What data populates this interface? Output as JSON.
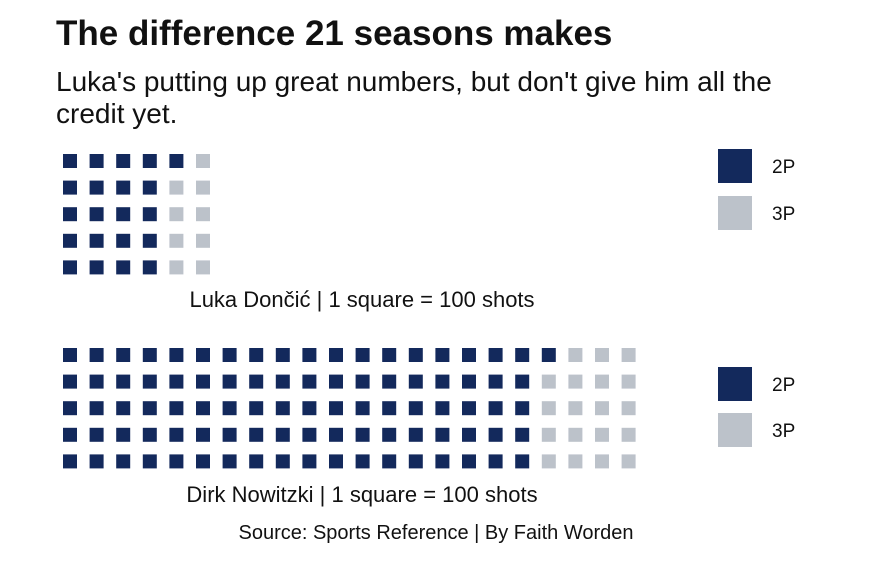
{
  "title": "The difference 21 seasons makes",
  "subtitle": "Luka's putting up great numbers, but don't give him all the credit yet.",
  "source": "Source: Sports Reference | By Faith Worden",
  "colors": {
    "2P": "#13295c",
    "3P": "#bcc2ca"
  },
  "chart_data": [
    {
      "type": "waffle",
      "caption": "Luka Dončić | 1 square = 100 shots",
      "unit": 100,
      "rows": 5,
      "categories": [
        "2P",
        "3P"
      ],
      "values": [
        21,
        9
      ],
      "legend": [
        "2P",
        "3P"
      ],
      "legend_position": "right"
    },
    {
      "type": "waffle",
      "caption": "Dirk Nowitzki | 1 square = 100 shots",
      "unit": 100,
      "rows": 5,
      "categories": [
        "2P",
        "3P"
      ],
      "values": [
        91,
        19
      ],
      "legend": [
        "2P",
        "3P"
      ],
      "legend_position": "right"
    }
  ]
}
